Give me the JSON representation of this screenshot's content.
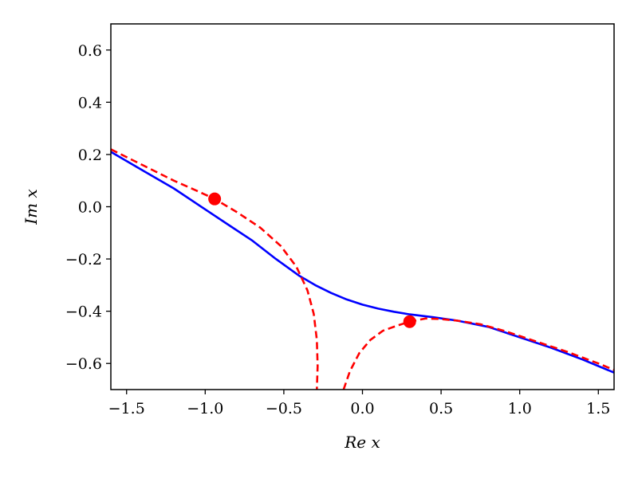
{
  "chart_data": {
    "type": "line",
    "title": "",
    "xlabel": "Re x",
    "ylabel": "Im x",
    "xlim": [
      -1.6,
      1.6
    ],
    "ylim": [
      -0.7,
      0.7
    ],
    "x_ticks": [
      -1.5,
      -1.0,
      -0.5,
      0.0,
      0.5,
      1.0,
      1.5
    ],
    "x_tick_labels": [
      "−1.5",
      "−1.0",
      "−0.5",
      "0.0",
      "0.5",
      "1.0",
      "1.5"
    ],
    "y_ticks": [
      0.6,
      0.4,
      0.2,
      0.0,
      -0.2,
      -0.4,
      -0.6
    ],
    "y_tick_labels": [
      "0.6",
      "0.4",
      "0.2",
      "0.0",
      "−0.2",
      "−0.4",
      "−0.6"
    ],
    "grid": false,
    "legend": "none",
    "series": [
      {
        "style": "solid",
        "color": "#0000ff",
        "points": [
          [
            -1.6,
            0.21
          ],
          [
            -1.4,
            0.14
          ],
          [
            -1.2,
            0.07
          ],
          [
            -1.0,
            -0.01
          ],
          [
            -0.85,
            -0.07
          ],
          [
            -0.7,
            -0.13
          ],
          [
            -0.55,
            -0.2
          ],
          [
            -0.4,
            -0.265
          ],
          [
            -0.3,
            -0.3
          ],
          [
            -0.2,
            -0.33
          ],
          [
            -0.1,
            -0.355
          ],
          [
            0.0,
            -0.375
          ],
          [
            0.1,
            -0.39
          ],
          [
            0.2,
            -0.402
          ],
          [
            0.3,
            -0.412
          ],
          [
            0.45,
            -0.423
          ],
          [
            0.6,
            -0.436
          ],
          [
            0.8,
            -0.46
          ],
          [
            1.0,
            -0.5
          ],
          [
            1.2,
            -0.54
          ],
          [
            1.4,
            -0.585
          ],
          [
            1.6,
            -0.635
          ]
        ]
      },
      {
        "style": "dashed",
        "color": "#ff0000",
        "points": [
          [
            -1.6,
            0.22
          ],
          [
            -1.4,
            0.16
          ],
          [
            -1.2,
            0.1
          ],
          [
            -1.05,
            0.06
          ],
          [
            -0.94,
            0.03
          ],
          [
            -0.8,
            -0.02
          ],
          [
            -0.65,
            -0.08
          ],
          [
            -0.52,
            -0.15
          ],
          [
            -0.42,
            -0.23
          ],
          [
            -0.35,
            -0.32
          ],
          [
            -0.31,
            -0.41
          ],
          [
            -0.29,
            -0.51
          ],
          [
            -0.285,
            -0.61
          ],
          [
            -0.29,
            -0.7
          ]
        ]
      },
      {
        "style": "dashed",
        "color": "#ff0000",
        "points": [
          [
            -0.12,
            -0.7
          ],
          [
            -0.08,
            -0.63
          ],
          [
            -0.02,
            -0.56
          ],
          [
            0.05,
            -0.51
          ],
          [
            0.13,
            -0.475
          ],
          [
            0.22,
            -0.455
          ],
          [
            0.3,
            -0.44
          ],
          [
            0.4,
            -0.428
          ],
          [
            0.5,
            -0.43
          ],
          [
            0.6,
            -0.436
          ],
          [
            0.75,
            -0.45
          ],
          [
            0.9,
            -0.475
          ],
          [
            1.1,
            -0.515
          ],
          [
            1.3,
            -0.555
          ],
          [
            1.5,
            -0.6
          ],
          [
            1.6,
            -0.625
          ]
        ]
      }
    ],
    "markers": [
      {
        "x": -0.94,
        "y": 0.03,
        "color": "#ff0000"
      },
      {
        "x": 0.3,
        "y": -0.44,
        "color": "#ff0000"
      }
    ]
  }
}
